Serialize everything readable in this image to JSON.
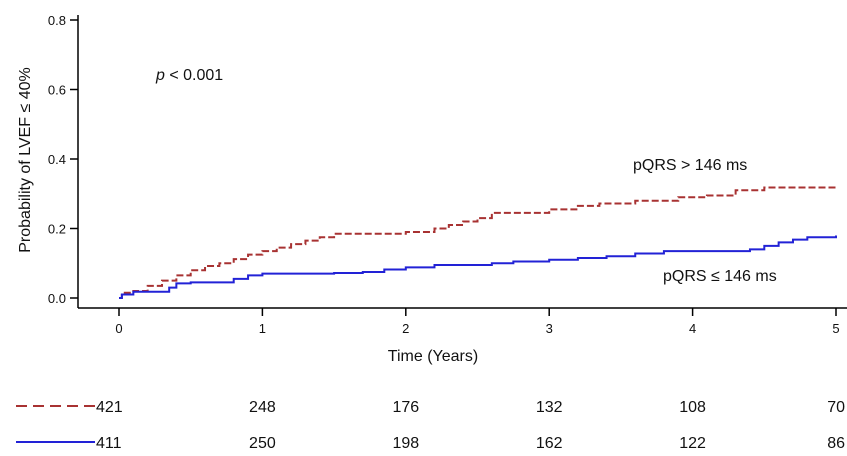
{
  "chart_data": {
    "type": "line",
    "title": "",
    "xlabel": "Time (Years)",
    "ylabel": "Probability of LVEF ≤ 40%",
    "xlim": [
      0,
      5
    ],
    "ylim": [
      0,
      0.8
    ],
    "x_ticks": [
      "0",
      "1",
      "2",
      "3",
      "4",
      "5"
    ],
    "y_ticks": [
      "0.0",
      "0.2",
      "0.4",
      "0.6",
      "0.8"
    ],
    "grid": false,
    "p_value": {
      "symbol": "p",
      "text": " < 0.001"
    },
    "series": [
      {
        "name": "pQRS > 146 ms",
        "color": "#a83232",
        "style": "dashed",
        "steps": [
          [
            0,
            0.0
          ],
          [
            0.02,
            0.015
          ],
          [
            0.1,
            0.02
          ],
          [
            0.2,
            0.035
          ],
          [
            0.3,
            0.05
          ],
          [
            0.4,
            0.065
          ],
          [
            0.5,
            0.08
          ],
          [
            0.6,
            0.092
          ],
          [
            0.7,
            0.1
          ],
          [
            0.8,
            0.112
          ],
          [
            0.9,
            0.125
          ],
          [
            1.0,
            0.135
          ],
          [
            1.1,
            0.145
          ],
          [
            1.2,
            0.155
          ],
          [
            1.3,
            0.165
          ],
          [
            1.4,
            0.175
          ],
          [
            1.5,
            0.185
          ],
          [
            2.0,
            0.19
          ],
          [
            2.2,
            0.2
          ],
          [
            2.3,
            0.21
          ],
          [
            2.4,
            0.22
          ],
          [
            2.5,
            0.23
          ],
          [
            2.6,
            0.245
          ],
          [
            3.0,
            0.255
          ],
          [
            3.2,
            0.265
          ],
          [
            3.35,
            0.272
          ],
          [
            3.6,
            0.28
          ],
          [
            3.9,
            0.29
          ],
          [
            4.1,
            0.295
          ],
          [
            4.3,
            0.31
          ],
          [
            4.5,
            0.318
          ],
          [
            5.0,
            0.32
          ]
        ],
        "at_risk": [
          "421",
          "248",
          "176",
          "132",
          "108",
          "70"
        ]
      },
      {
        "name": "pQRS ≤ 146 ms",
        "color": "#2222d6",
        "style": "solid",
        "steps": [
          [
            0,
            0.0
          ],
          [
            0.02,
            0.01
          ],
          [
            0.1,
            0.018
          ],
          [
            0.35,
            0.03
          ],
          [
            0.4,
            0.042
          ],
          [
            0.5,
            0.045
          ],
          [
            0.8,
            0.055
          ],
          [
            0.9,
            0.065
          ],
          [
            1.0,
            0.07
          ],
          [
            1.5,
            0.072
          ],
          [
            1.7,
            0.075
          ],
          [
            1.85,
            0.082
          ],
          [
            2.0,
            0.088
          ],
          [
            2.2,
            0.095
          ],
          [
            2.6,
            0.1
          ],
          [
            2.75,
            0.105
          ],
          [
            3.0,
            0.11
          ],
          [
            3.2,
            0.115
          ],
          [
            3.4,
            0.12
          ],
          [
            3.6,
            0.128
          ],
          [
            3.8,
            0.135
          ],
          [
            4.4,
            0.14
          ],
          [
            4.5,
            0.15
          ],
          [
            4.6,
            0.16
          ],
          [
            4.7,
            0.168
          ],
          [
            4.8,
            0.175
          ],
          [
            5.0,
            0.18
          ]
        ],
        "at_risk": [
          "411",
          "250",
          "198",
          "162",
          "122",
          "86"
        ]
      }
    ]
  }
}
